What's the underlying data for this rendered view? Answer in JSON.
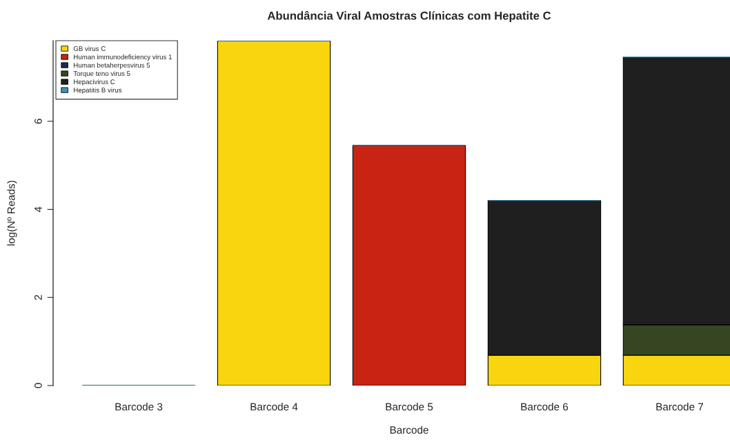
{
  "chart_data": {
    "type": "bar",
    "stacked": true,
    "title": "Abundância Viral Amostras Clínicas com Hepatite C",
    "xlabel": "Barcode",
    "ylabel": "log(Nº Reads)",
    "categories": [
      "Barcode 3",
      "Barcode 4",
      "Barcode 5",
      "Barcode 6",
      "Barcode 7"
    ],
    "series": [
      {
        "name": "GB virus C",
        "color": "#f9d510",
        "values": [
          0,
          7.83,
          0,
          0.69,
          0.69
        ]
      },
      {
        "name": "Human immunodeficiency virus 1",
        "color": "#c92314",
        "values": [
          0,
          0,
          5.45,
          0,
          0
        ]
      },
      {
        "name": "Human betaherpesvirus 5",
        "color": "#1e2a4a",
        "values": [
          0,
          0,
          0,
          0,
          0
        ]
      },
      {
        "name": "Torque teno virus 5",
        "color": "#364522",
        "values": [
          0,
          0,
          0,
          0,
          0.69
        ]
      },
      {
        "name": "Hepacivirus C",
        "color": "#1f1f1f",
        "values": [
          0,
          0,
          0,
          3.51,
          6.08
        ]
      },
      {
        "name": "Hepatitis B virus",
        "color": "#3d94b8",
        "values": [
          0,
          0,
          0,
          0,
          0
        ]
      }
    ],
    "ylim": [
      0,
      7.83
    ],
    "yticks": [
      0,
      2,
      4,
      6
    ],
    "grid": false,
    "legend": "top left"
  }
}
